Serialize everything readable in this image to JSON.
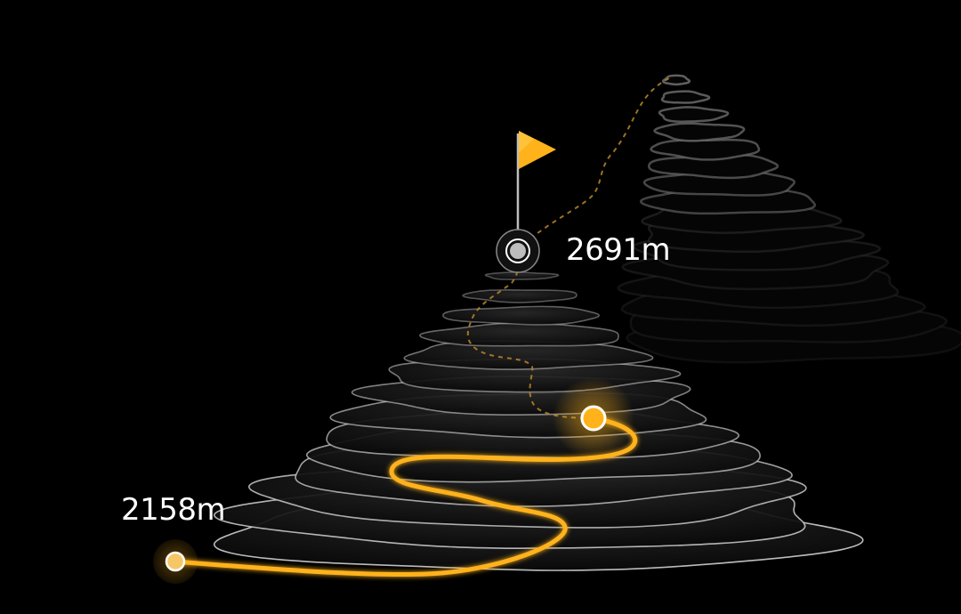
{
  "summit": {
    "elevation_label": "2691m",
    "flag_icon": "flag-icon",
    "flag_color": "#FFB21A"
  },
  "start": {
    "elevation_label": "2158m"
  },
  "current_position": {
    "marker_icon": "position-marker-icon"
  },
  "colors": {
    "background": "#000000",
    "route_completed": "#FFB21A",
    "route_remaining": "#B8862A",
    "contour_front": "#CFCFCF",
    "contour_back": "#3A3A3A",
    "label_text": "#FFFFFF"
  }
}
